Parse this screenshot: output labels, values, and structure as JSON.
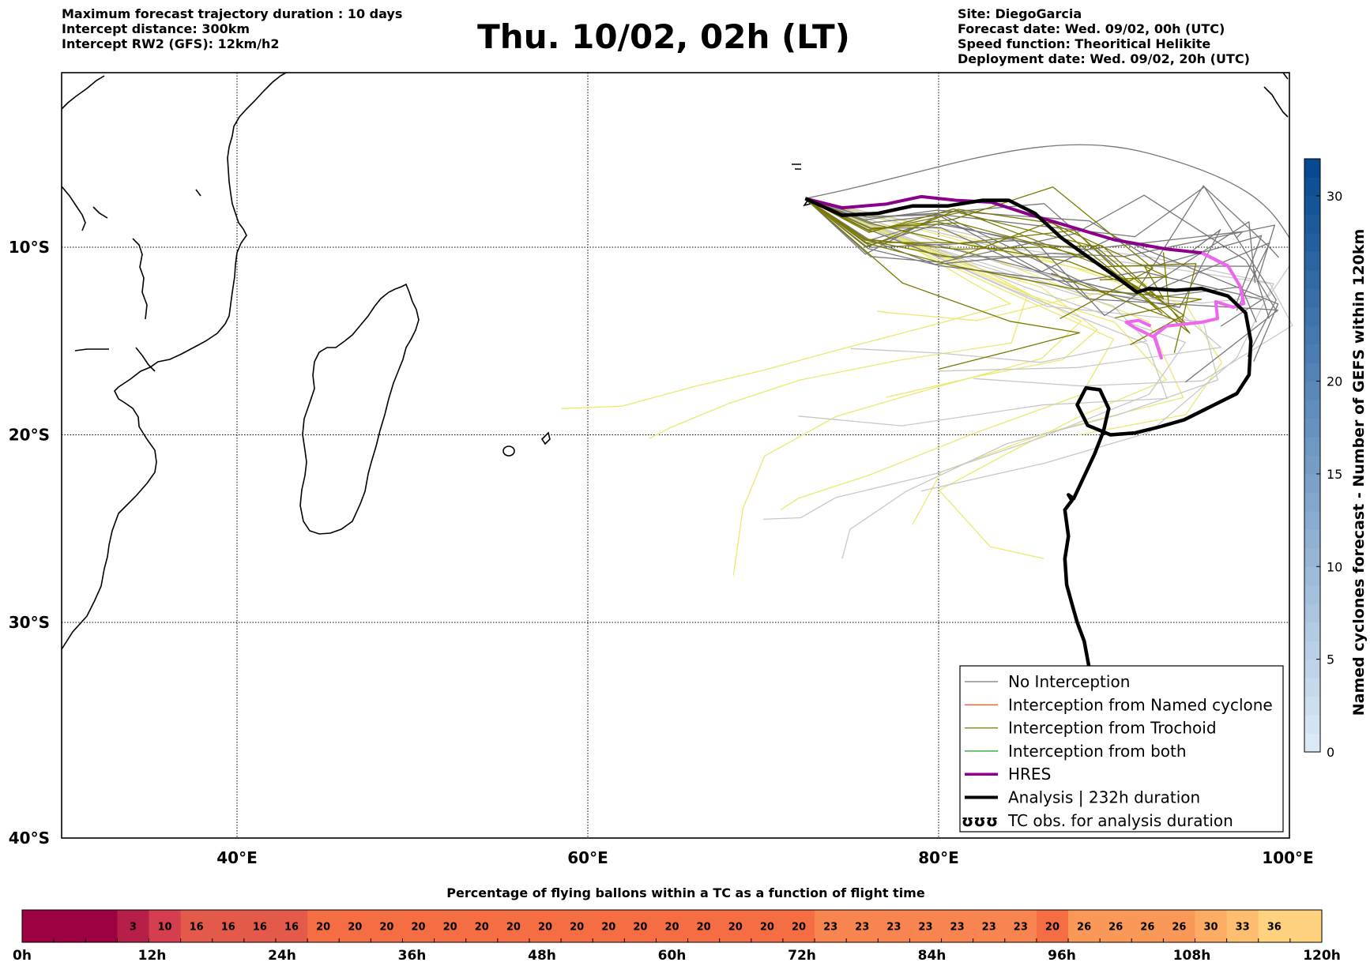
{
  "header": {
    "left_lines": [
      "Maximum forecast trajectory duration : 10 days",
      "Intercept distance: 300km",
      "Intercept RW2 (GFS):  12km/h2"
    ],
    "title": "Thu. 10/02, 02h (LT)",
    "right_lines": [
      "Site: DiegoGarcia",
      "Forecast date: Wed. 09/02, 00h (UTC)",
      "Speed function: Theoritical Helikite",
      "Deployment date: Wed. 09/02, 20h (UTC)"
    ]
  },
  "map": {
    "lon_range": [
      30,
      100
    ],
    "lat_range": [
      -40,
      0
    ],
    "lon_ticks": [
      {
        "value": 40,
        "label": "40°E"
      },
      {
        "value": 60,
        "label": "60°E"
      },
      {
        "value": 80,
        "label": "80°E"
      },
      {
        "value": 100,
        "label": "100°E"
      }
    ],
    "lat_ticks": [
      {
        "value": -10,
        "label": "10°S"
      },
      {
        "value": -20,
        "label": "20°S"
      },
      {
        "value": -30,
        "label": "30°S"
      },
      {
        "value": -40,
        "label": "40°S"
      }
    ],
    "gridlines": "dotted",
    "hres_track": [
      [
        72.4,
        -7.4
      ],
      [
        74.5,
        -7.9
      ],
      [
        77,
        -7.7
      ],
      [
        79,
        -7.3
      ],
      [
        81,
        -7.5
      ],
      [
        83,
        -7.6
      ],
      [
        85,
        -8.2
      ],
      [
        87.5,
        -8.9
      ],
      [
        90,
        -9.6
      ],
      [
        93,
        -10.1
      ],
      [
        95,
        -10.3
      ],
      [
        96.5,
        -11
      ],
      [
        97.2,
        -12.1
      ],
      [
        97.4,
        -13
      ],
      [
        96.8,
        -13.2
      ],
      [
        95.8,
        -12.9
      ],
      [
        95.9,
        -13.8
      ],
      [
        95,
        -14
      ],
      [
        93,
        -14.2
      ],
      [
        92.3,
        -14.7
      ],
      [
        92.7,
        -15.9
      ],
      [
        92.3,
        -14.8
      ],
      [
        91.2,
        -14.3
      ],
      [
        90.7,
        -14.0
      ],
      [
        91.4,
        -13.9
      ],
      [
        92.1,
        -14.2
      ]
    ],
    "analysis_track": [
      [
        72.4,
        -7.4
      ],
      [
        74.5,
        -8.3
      ],
      [
        76.5,
        -8.2
      ],
      [
        78.5,
        -7.8
      ],
      [
        80.5,
        -7.8
      ],
      [
        82.5,
        -7.5
      ],
      [
        84,
        -7.5
      ],
      [
        85.5,
        -8.2
      ],
      [
        87,
        -9.5
      ],
      [
        88.5,
        -10.5
      ],
      [
        90,
        -11.5
      ],
      [
        91.3,
        -12.4
      ],
      [
        92,
        -12.2
      ],
      [
        93.5,
        -12.3
      ],
      [
        95,
        -12.2
      ],
      [
        96.5,
        -12.6
      ],
      [
        97.5,
        -13.5
      ],
      [
        97.8,
        -15
      ],
      [
        97.7,
        -16.8
      ],
      [
        97,
        -17.8
      ],
      [
        95.5,
        -18.5
      ],
      [
        94,
        -19.2
      ],
      [
        92.5,
        -19.6
      ],
      [
        91.2,
        -19.9
      ],
      [
        89.8,
        -20
      ],
      [
        88.5,
        -19.5
      ],
      [
        87.9,
        -18.4
      ],
      [
        88.4,
        -17.5
      ],
      [
        89.2,
        -17.6
      ],
      [
        89.7,
        -18.6
      ],
      [
        89.4,
        -19.8
      ],
      [
        88.9,
        -21
      ],
      [
        88.3,
        -22.2
      ],
      [
        87.7,
        -23.4
      ],
      [
        87.4,
        -23.2
      ],
      [
        87.6,
        -23.5
      ],
      [
        87.2,
        -24
      ],
      [
        87.4,
        -25.4
      ],
      [
        87.2,
        -26.6
      ],
      [
        87.3,
        -28
      ],
      [
        87.6,
        -29
      ],
      [
        87.9,
        -30
      ],
      [
        88.3,
        -31
      ],
      [
        88.6,
        -32.5
      ],
      [
        88.9,
        -34
      ]
    ]
  },
  "legend": {
    "items": [
      {
        "label": "No Interception",
        "color": "#777777",
        "width": 1.3
      },
      {
        "label": "Interception from Named cyclone",
        "color": "#ff5a1f",
        "width": 1.3
      },
      {
        "label": "Interception from Trochoid",
        "color": "#7a7a00",
        "width": 1.3
      },
      {
        "label": "Interception from both",
        "color": "#1a9a1a",
        "width": 1.3
      },
      {
        "label": "HRES",
        "color": "#8a008a",
        "width": 3.5
      },
      {
        "label": "Analysis | 232h duration",
        "color": "#000000",
        "width": 4
      },
      {
        "label": "TC obs. for analysis duration",
        "color": "#000000",
        "symbol": "ʊʊʊ"
      }
    ]
  },
  "colorbar_vertical": {
    "label": "Named cyclones forecast - Number of GEFS within 120km",
    "range": [
      0,
      32
    ],
    "ticks": [
      "0",
      "5",
      "10",
      "15",
      "20",
      "30"
    ],
    "colors": [
      "#dbe9f6",
      "#084a91"
    ]
  },
  "colorbar_horizontal": {
    "title": "Percentage of flying ballons within a TC as a function of flight time",
    "time_labels": [
      "0h",
      "12h",
      "24h",
      "36h",
      "48h",
      "60h",
      "72h",
      "84h",
      "96h",
      "108h",
      "120h"
    ],
    "cells": [
      "",
      "",
      "",
      "3",
      "10",
      "16",
      "16",
      "16",
      "16",
      "20",
      "20",
      "20",
      "20",
      "20",
      "20",
      "20",
      "20",
      "20",
      "20",
      "20",
      "20",
      "20",
      "20",
      "20",
      "20",
      "23",
      "23",
      "23",
      "23",
      "23",
      "23",
      "23",
      "20",
      "26",
      "26",
      "26",
      "26",
      "30",
      "33",
      "36",
      ""
    ],
    "cell_values": [
      0,
      0,
      0,
      3,
      10,
      16,
      16,
      16,
      16,
      20,
      20,
      20,
      20,
      20,
      20,
      20,
      20,
      20,
      20,
      20,
      20,
      20,
      20,
      20,
      20,
      23,
      23,
      23,
      23,
      23,
      23,
      23,
      20,
      26,
      26,
      26,
      26,
      30,
      33,
      36,
      36
    ]
  }
}
